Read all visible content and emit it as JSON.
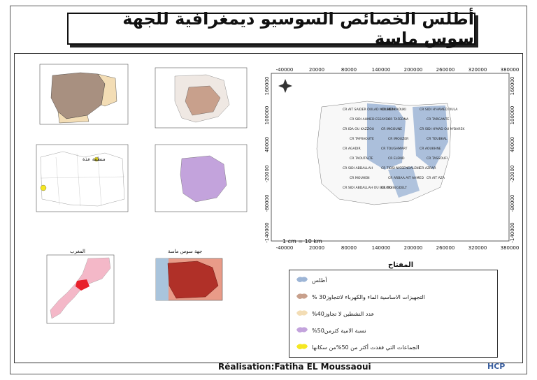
{
  "title": "أطلس الخصائص السوسيو ديمغرافية للجهة سوس ماسة",
  "main_map": {
    "x_ticks": [
      "-40000",
      "20000",
      "80000",
      "140000",
      "200000",
      "260000",
      "320000",
      "380000"
    ],
    "y_ticks": [
      "160000",
      "100000",
      "40000",
      "-20000",
      "-80000",
      "-140000"
    ],
    "scale_text": "1 cm = 10 km",
    "place_labels": [
      "CR AIT SAIDER OULAD MOUMEN",
      "CR SIDI KAOUKI",
      "CR SIDI H'HAMED OULA",
      "CR SIDI AHMED ESSAYEH",
      "CR TAFEDNA",
      "CR TARGANTE",
      "CR IDA OU KAZZOU",
      "CR IMGOUNE",
      "CR SIDI H'MAD OU M'BAREK",
      "CR TAFRAOUTE",
      "CR IMOUZER",
      "CR TOUBKAL",
      "CR AGADIR",
      "CR TOUGHMART",
      "CR AOUKHNE",
      "CR TAOUTALTE",
      "CR ELFAID",
      "CR TASSOUFI",
      "CR SIDI ABDALLAH",
      "CR TIDSI NISSENDALENE",
      "CR AZRAR",
      "CR MOUHEN",
      "CR ARBAA AIT AHMED",
      "CR AIT AZA",
      "CR SIDI ABDALLAH OU BELAID",
      "CR TASSEGDELT"
    ]
  },
  "legend": {
    "title": "المفتاح",
    "items": [
      {
        "label": "أطلس",
        "color": "#9db5d6"
      },
      {
        "label": "التجهيزات الاساسية الماء والكهرباء لاتتجاوز30 %",
        "color": "#c8a08c"
      },
      {
        "label": "عدد النشطين لا تجاوز40%",
        "color": "#f3ddb5"
      },
      {
        "label": "نسبة الامية كثرمن50%",
        "color": "#c3a3dc"
      },
      {
        "label": "الجماعات التي فقدت أكثر من 50%من سكانها",
        "color": "#f5e722"
      }
    ]
  },
  "insets": {
    "morocco_label": "المغرب",
    "region_label": "جهة سوس ماسة",
    "map4_annotation": "منطقة عذة"
  },
  "footer": {
    "credit": "Réalisation:Fatiha EL Moussaoui",
    "org": "HCP"
  }
}
